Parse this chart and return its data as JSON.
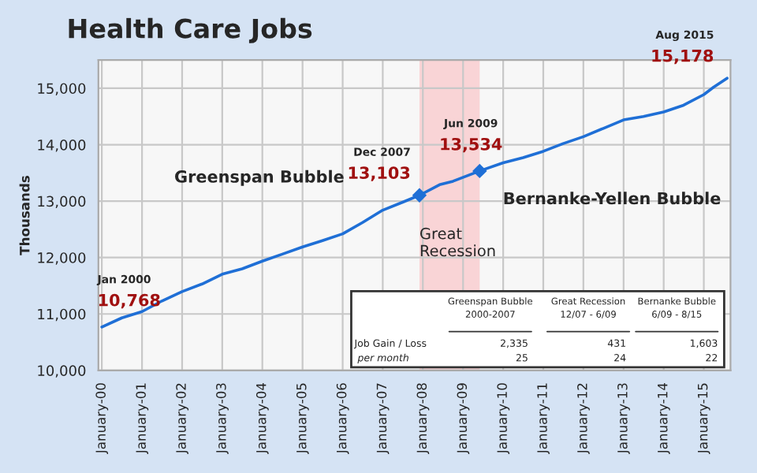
{
  "chart_data": {
    "type": "line",
    "title": "Health Care Jobs",
    "ylabel": "Thousands",
    "x": [
      "2000-01",
      "2000-07",
      "2001-01",
      "2001-07",
      "2002-01",
      "2002-07",
      "2003-01",
      "2003-07",
      "2004-01",
      "2004-07",
      "2005-01",
      "2005-07",
      "2006-01",
      "2006-07",
      "2007-01",
      "2007-07",
      "2007-12",
      "2008-06",
      "2008-10",
      "2009-06",
      "2010-01",
      "2010-07",
      "2011-01",
      "2011-07",
      "2012-01",
      "2012-07",
      "2013-01",
      "2013-07",
      "2014-01",
      "2014-07",
      "2015-01",
      "2015-04",
      "2015-08"
    ],
    "series": [
      {
        "color": "#1f6fd6",
        "values": [
          10768,
          10930,
          11042,
          11230,
          11397,
          11530,
          11704,
          11800,
          11936,
          12060,
          12187,
          12300,
          12420,
          12620,
          12840,
          12980,
          13103,
          13290,
          13352,
          13534,
          13680,
          13770,
          13883,
          14020,
          14142,
          14290,
          14440,
          14500,
          14581,
          14700,
          14888,
          15020,
          15178
        ]
      },
      {
        "type": "scatter",
        "color": "#1f6fd6",
        "marker": "diamond",
        "x": [
          "2007-12",
          "2009-06"
        ],
        "values": [
          13103,
          13534
        ]
      }
    ],
    "xlim": [
      "1999-12",
      "2015-09"
    ],
    "xticks": [
      {
        "value": "2000-01",
        "label": "January-00"
      },
      {
        "value": "2001-01",
        "label": "January-01"
      },
      {
        "value": "2002-01",
        "label": "January-02"
      },
      {
        "value": "2003-01",
        "label": "January-03"
      },
      {
        "value": "2004-01",
        "label": "January-04"
      },
      {
        "value": "2005-01",
        "label": "January-05"
      },
      {
        "value": "2006-01",
        "label": "January-06"
      },
      {
        "value": "2007-01",
        "label": "January-07"
      },
      {
        "value": "2008-01",
        "label": "January-08"
      },
      {
        "value": "2009-01",
        "label": "January-09"
      },
      {
        "value": "2010-01",
        "label": "January-10"
      },
      {
        "value": "2011-01",
        "label": "January-11"
      },
      {
        "value": "2012-01",
        "label": "January-12"
      },
      {
        "value": "2013-01",
        "label": "January-13"
      },
      {
        "value": "2014-01",
        "label": "January-14"
      },
      {
        "value": "2015-01",
        "label": "January-15"
      }
    ],
    "ylim": [
      10000,
      15500
    ],
    "yticks": [
      {
        "value": 10000,
        "label": "10,000"
      },
      {
        "value": 11000,
        "label": "11,000"
      },
      {
        "value": 12000,
        "label": "12,000"
      },
      {
        "value": 13000,
        "label": "13,000"
      },
      {
        "value": 14000,
        "label": "14,000"
      },
      {
        "value": 15000,
        "label": "15,000"
      }
    ],
    "grid": true,
    "bands": [
      {
        "axis": "x",
        "from": "2007-12",
        "to": "2009-06",
        "label": "Great Recession",
        "color": "#f9d4d6"
      }
    ],
    "annotations": [
      {
        "text": "10,768",
        "x": "2000-01",
        "y": 10768
      },
      {
        "text": "13,103",
        "x": "2007-12",
        "y": 13103
      },
      {
        "text": "13,534",
        "x": "2009-06",
        "y": 13534
      },
      {
        "text": "15,178",
        "x": "2015-08",
        "y": 15178
      },
      "Jan 2000",
      "Dec 2007",
      "Jun 2009",
      "Aug 2015",
      "Greenspan Bubble",
      "Bernanke-Yellen Bubble",
      "Greenspan Bubble\n2000-2007",
      "Great Recession\n12/07 - 6/09",
      "Bernanke Bubble\n6/09 - 8/15",
      "Job Gain / Loss",
      "2,335",
      "431",
      "1,603",
      "per month",
      "25",
      "24",
      "22"
    ]
  }
}
